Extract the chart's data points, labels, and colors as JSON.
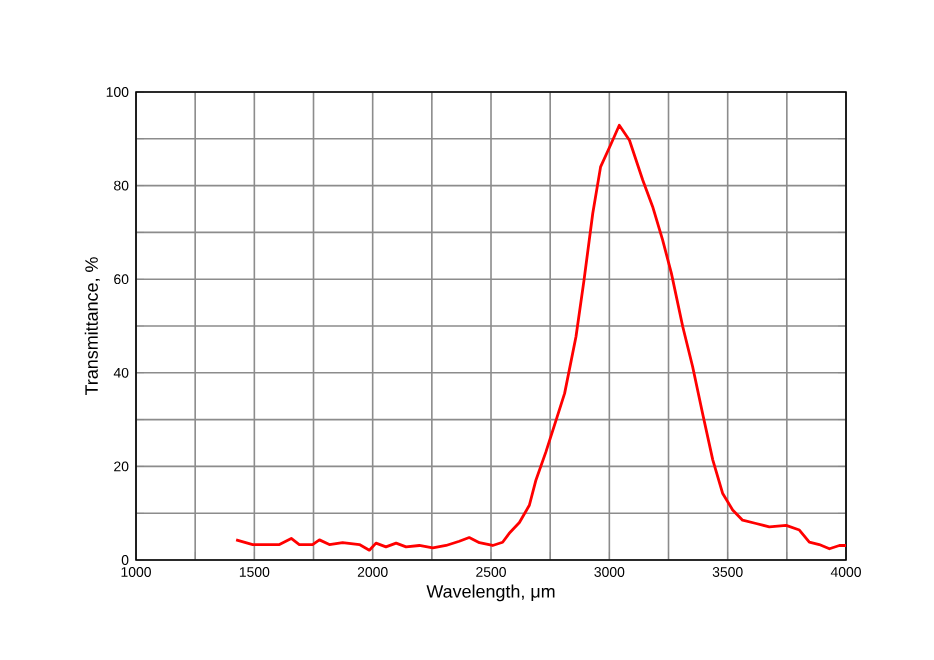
{
  "chart_data": {
    "type": "line",
    "xlabel": "Wavelength, μm",
    "ylabel": "Transmittance, %",
    "xlim": [
      1000,
      4000
    ],
    "ylim": [
      0,
      100
    ],
    "xticks": [
      1000,
      {
        "value": 1250,
        "label": null
      },
      1500,
      {
        "value": 1750,
        "label": null
      },
      2000,
      {
        "value": 2250,
        "label": null
      },
      2500,
      {
        "value": 2750,
        "label": null
      },
      3000,
      {
        "value": 3250,
        "label": null
      },
      3500,
      {
        "value": 3750,
        "label": null
      },
      4000
    ],
    "yticks": [
      0,
      {
        "value": 10,
        "label": null
      },
      20,
      {
        "value": 30,
        "label": null
      },
      40,
      {
        "value": 50,
        "label": null
      },
      60,
      {
        "value": 70,
        "label": null
      },
      80,
      {
        "value": 90,
        "label": null
      },
      100
    ],
    "grid": true,
    "marker": "none",
    "line_style": "solid",
    "series": [
      {
        "color": "#ff0000",
        "x": [
          1423,
          1493,
          1606,
          1656,
          1690,
          1746,
          1775,
          1817,
          1873,
          1944,
          1986,
          2014,
          2056,
          2099,
          2141,
          2197,
          2254,
          2310,
          2366,
          2408,
          2451,
          2507,
          2549,
          2577,
          2620,
          2662,
          2690,
          2732,
          2775,
          2811,
          2859,
          2893,
          2930,
          2963,
          3008,
          3042,
          3085,
          3141,
          3183,
          3225,
          3262,
          3310,
          3352,
          3394,
          3437,
          3479,
          3521,
          3563,
          3620,
          3676,
          3747,
          3803,
          3845,
          3887,
          3930,
          3972,
          4000
        ],
        "values": [
          4.3,
          3.3,
          3.3,
          4.6,
          3.3,
          3.3,
          4.3,
          3.3,
          3.7,
          3.3,
          2.1,
          3.6,
          2.8,
          3.6,
          2.8,
          3.1,
          2.6,
          3.1,
          4.0,
          4.8,
          3.7,
          3.1,
          3.8,
          5.7,
          8.0,
          11.7,
          17.1,
          23.1,
          29.9,
          35.6,
          47.7,
          59.8,
          74.1,
          84.0,
          89.0,
          92.9,
          89.7,
          81.2,
          75.5,
          68.4,
          61.3,
          49.9,
          41.3,
          31.3,
          21.4,
          14.2,
          10.7,
          8.5,
          7.8,
          7.1,
          7.4,
          6.4,
          3.8,
          3.3,
          2.4,
          3.1,
          3.1
        ]
      }
    ]
  }
}
